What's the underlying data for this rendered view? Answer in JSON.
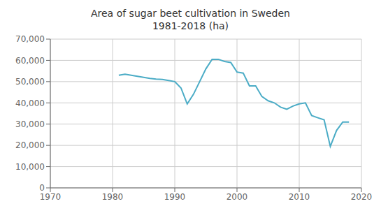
{
  "chart_data": {
    "type": "line",
    "title": "Area of sugar beet cultivation in Sweden\n1981-2018 (ha)",
    "color": "#4BACC6",
    "grid": true,
    "xlim": [
      1970,
      2020
    ],
    "ylim": [
      0,
      70000
    ],
    "xticks": [
      1970,
      1980,
      1990,
      2000,
      2010,
      2020
    ],
    "yticks": [
      0,
      {
        "value": 10000,
        "label": "10,000"
      },
      {
        "value": 20000,
        "label": "20,000"
      },
      {
        "value": 30000,
        "label": "30,000"
      },
      {
        "value": 40000,
        "label": "40,000"
      },
      {
        "value": 50000,
        "label": "50,000"
      },
      {
        "value": 60000,
        "label": "60,000"
      },
      {
        "value": 70000,
        "label": "70,000"
      }
    ],
    "x": [
      1981,
      1982,
      1983,
      1984,
      1985,
      1986,
      1987,
      1988,
      1989,
      1990,
      1991,
      1992,
      1993,
      1994,
      1995,
      1996,
      1997,
      1998,
      1999,
      2000,
      2001,
      2002,
      2003,
      2004,
      2005,
      2006,
      2007,
      2008,
      2009,
      2010,
      2011,
      2012,
      2013,
      2014,
      2015,
      2016,
      2017,
      2018
    ],
    "values": [
      53000,
      53500,
      53000,
      52500,
      52000,
      51500,
      51200,
      51000,
      50500,
      50000,
      47000,
      39500,
      44000,
      50000,
      56000,
      60500,
      60500,
      59500,
      59000,
      54500,
      54000,
      48000,
      48000,
      43000,
      41000,
      40000,
      38000,
      37000,
      38500,
      39500,
      40000,
      34000,
      33000,
      32000,
      19500,
      27000,
      31000,
      31000
    ]
  }
}
